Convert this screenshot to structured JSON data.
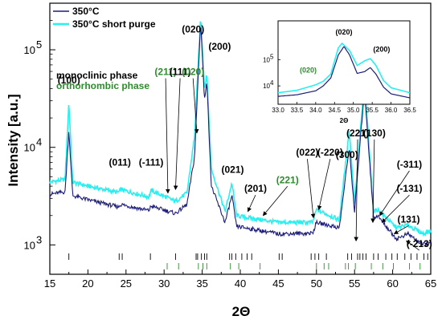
{
  "chart_data": {
    "type": "line",
    "xlabel": "2Θ",
    "ylabel": "Intensity [a.u.]",
    "xlim": [
      15,
      65
    ],
    "ylim": [
      500,
      300000
    ],
    "yscale": "log",
    "x_ticks": [
      "15",
      "20",
      "25",
      "30",
      "35",
      "40",
      "45",
      "50",
      "55",
      "60",
      "65"
    ],
    "y_ticks": [
      {
        "base": "10",
        "exp": "3",
        "value": 1000
      },
      {
        "base": "10",
        "exp": "4",
        "value": 10000
      },
      {
        "base": "10",
        "exp": "5",
        "value": 100000
      }
    ],
    "colors": {
      "series1": "#1c1c7a",
      "series2": "#26f0f0",
      "monoclinic": "#000000",
      "orthorhombic": "#2e8b2e"
    },
    "series": [
      {
        "name": "350°C",
        "color": "#1c1c7a",
        "x": [
          15,
          17.0,
          17.5,
          18.0,
          20,
          24,
          24.3,
          28,
          28.3,
          31.5,
          33,
          34.0,
          34.8,
          35.3,
          35.6,
          36.2,
          38,
          38.9,
          39.5,
          41,
          45,
          49.5,
          50,
          53,
          54.3,
          55,
          56.3,
          57.5,
          58,
          60.5,
          62,
          64,
          65
        ],
        "values": [
          3300,
          3500,
          15000,
          3200,
          2900,
          2450,
          2600,
          2250,
          2500,
          2100,
          2600,
          8000,
          200000,
          30000,
          50000,
          4000,
          1700,
          3200,
          1550,
          1480,
          1300,
          1320,
          1700,
          1500,
          10000,
          2200,
          40000,
          1900,
          2000,
          1150,
          1300,
          1000,
          1050
        ]
      },
      {
        "name": "350°C short purge",
        "color": "#26f0f0",
        "x": [
          15,
          17.0,
          17.5,
          18.0,
          20,
          24,
          24.3,
          28,
          28.3,
          31.5,
          33,
          34.0,
          34.8,
          35.3,
          35.6,
          36.2,
          38,
          38.9,
          39.5,
          41,
          45,
          49.5,
          50,
          53,
          54.3,
          55,
          56.3,
          57.5,
          58,
          60.5,
          62,
          64,
          65
        ],
        "values": [
          4400,
          4700,
          29000,
          4400,
          4000,
          3450,
          3700,
          3100,
          3600,
          2800,
          3400,
          13000,
          220000,
          40000,
          58000,
          6000,
          2200,
          4300,
          2000,
          1900,
          1700,
          1700,
          2300,
          1800,
          15000,
          2700,
          48000,
          2200,
          2300,
          1500,
          1600,
          1300,
          1400
        ]
      }
    ],
    "legend": {
      "position": "top-left",
      "entries": [
        "350°C",
        "350°C short purge"
      ]
    },
    "phase_labels": {
      "monoclinic": "monoclinic phase",
      "orthorhombic": "orthorhombic phase"
    },
    "reference_ticks": {
      "monoclinic": [
        17.5,
        24.1,
        24.5,
        28.2,
        31.5,
        34.2,
        34.4,
        34.9,
        35.3,
        35.6,
        38.6,
        38.9,
        39.4,
        40.2,
        40.9,
        41.5,
        45.1,
        45.5,
        49.3,
        49.8,
        50.3,
        51.3,
        54.1,
        54.6,
        55.4,
        55.7,
        56.1,
        56.5,
        57.5,
        58.1,
        59.1,
        59.9,
        60.6,
        61.6,
        62.4,
        63.2,
        64.1,
        64.6
      ],
      "orthorhombic": [
        30.4,
        31.9,
        34.5,
        35.1,
        35.6,
        38.7,
        39.8,
        42.6,
        50.0,
        51.0,
        51.6,
        53.8,
        54.2,
        55.1,
        57.2,
        58.7,
        60.1,
        62.2,
        63.6
      ]
    },
    "annotations": [
      {
        "text": "(100)",
        "x": 17.5,
        "y": 45000,
        "color": "black"
      },
      {
        "text": "(011)",
        "x": 24.2,
        "y": 6500,
        "color": "black"
      },
      {
        "text": "(-111)",
        "x": 28.3,
        "y": 6500,
        "color": "black"
      },
      {
        "text": "(211)",
        "x": 30.2,
        "y": 55000,
        "color": "green",
        "arrow_to": [
          30.5,
          3400
        ]
      },
      {
        "text": "(111)",
        "x": 32.1,
        "y": 55000,
        "color": "black",
        "arrow_to": [
          31.5,
          3700
        ]
      },
      {
        "text": "(020)",
        "x": 33.8,
        "y": 150000,
        "color": "black"
      },
      {
        "text": "(020)",
        "x": 33.8,
        "y": 55000,
        "color": "green",
        "arrow_to": [
          34.3,
          14000
        ]
      },
      {
        "text": "(200)",
        "x": 37.3,
        "y": 100000,
        "color": "black"
      },
      {
        "text": "(021)",
        "x": 39.0,
        "y": 5500,
        "color": "black"
      },
      {
        "text": "(201)",
        "x": 42.0,
        "y": 3500,
        "color": "black",
        "arrow_to": [
          41.0,
          2200
        ]
      },
      {
        "text": "(221)",
        "x": 46.2,
        "y": 4300,
        "color": "green",
        "arrow_to": [
          43.0,
          2000
        ]
      },
      {
        "text": "(022)",
        "x": 48.8,
        "y": 8200,
        "color": "black",
        "arrow_to": [
          49.6,
          1900
        ]
      },
      {
        "text": "(-220)",
        "x": 51.8,
        "y": 8200,
        "color": "black",
        "arrow_to": [
          50.3,
          2300
        ]
      },
      {
        "text": "(300)",
        "x": 54.0,
        "y": 7800,
        "color": "black"
      },
      {
        "text": "(221)",
        "x": 55.4,
        "y": 13000,
        "color": "black",
        "arrow_to": [
          55.2,
          1100
        ]
      },
      {
        "text": "(130)",
        "x": 57.6,
        "y": 13000,
        "color": "black",
        "arrow_to": [
          57.4,
          1700
        ]
      },
      {
        "text": "(-311)",
        "x": 62.2,
        "y": 6200,
        "color": "black",
        "arrow_to": [
          58.3,
          2000
        ]
      },
      {
        "text": "(-131)",
        "x": 62.2,
        "y": 3500,
        "color": "black",
        "arrow_to": [
          58.6,
          1700
        ]
      },
      {
        "text": "(131)",
        "x": 62.1,
        "y": 1700,
        "color": "black",
        "arrow_to": [
          60.2,
          1300
        ]
      },
      {
        "text": "(-213)",
        "x": 63.5,
        "y": 950,
        "color": "black",
        "arrow_to": [
          61.8,
          1100
        ]
      }
    ],
    "inset": {
      "xlabel": "2Θ",
      "xlim": [
        33.0,
        36.5
      ],
      "ylim": [
        2000,
        3000000
      ],
      "yscale": "log",
      "x_ticks": [
        "33.0",
        "33.5",
        "34.0",
        "34.5",
        "35.0",
        "35.5",
        "36.0",
        "36.5"
      ],
      "y_ticks": [
        {
          "base": "10",
          "exp": "4",
          "value": 10000
        },
        {
          "base": "10",
          "exp": "5",
          "value": 100000
        }
      ],
      "series": [
        {
          "name": "350°C",
          "x": [
            33.0,
            33.5,
            34.0,
            34.2,
            34.4,
            34.6,
            34.75,
            34.9,
            35.1,
            35.3,
            35.45,
            35.6,
            35.8,
            36.0,
            36.5
          ],
          "values": [
            4000,
            4600,
            6500,
            10000,
            20000,
            150000,
            320000,
            150000,
            30000,
            35000,
            50000,
            28000,
            9000,
            5000,
            3500
          ]
        },
        {
          "name": "350°C short purge",
          "x": [
            33.0,
            33.5,
            34.0,
            34.2,
            34.4,
            34.6,
            34.7,
            34.9,
            35.1,
            35.3,
            35.45,
            35.6,
            35.8,
            36.0,
            36.5
          ],
          "values": [
            5500,
            6800,
            11000,
            15000,
            28000,
            280000,
            420000,
            220000,
            60000,
            90000,
            110000,
            60000,
            16000,
            8500,
            5500
          ]
        }
      ],
      "annotations": [
        {
          "text": "(020)",
          "x": 34.75,
          "y": 900000,
          "color": "black"
        },
        {
          "text": "(200)",
          "x": 35.75,
          "y": 200000,
          "color": "black"
        },
        {
          "text": "(020)",
          "x": 33.8,
          "y": 32000,
          "color": "green"
        }
      ]
    }
  }
}
